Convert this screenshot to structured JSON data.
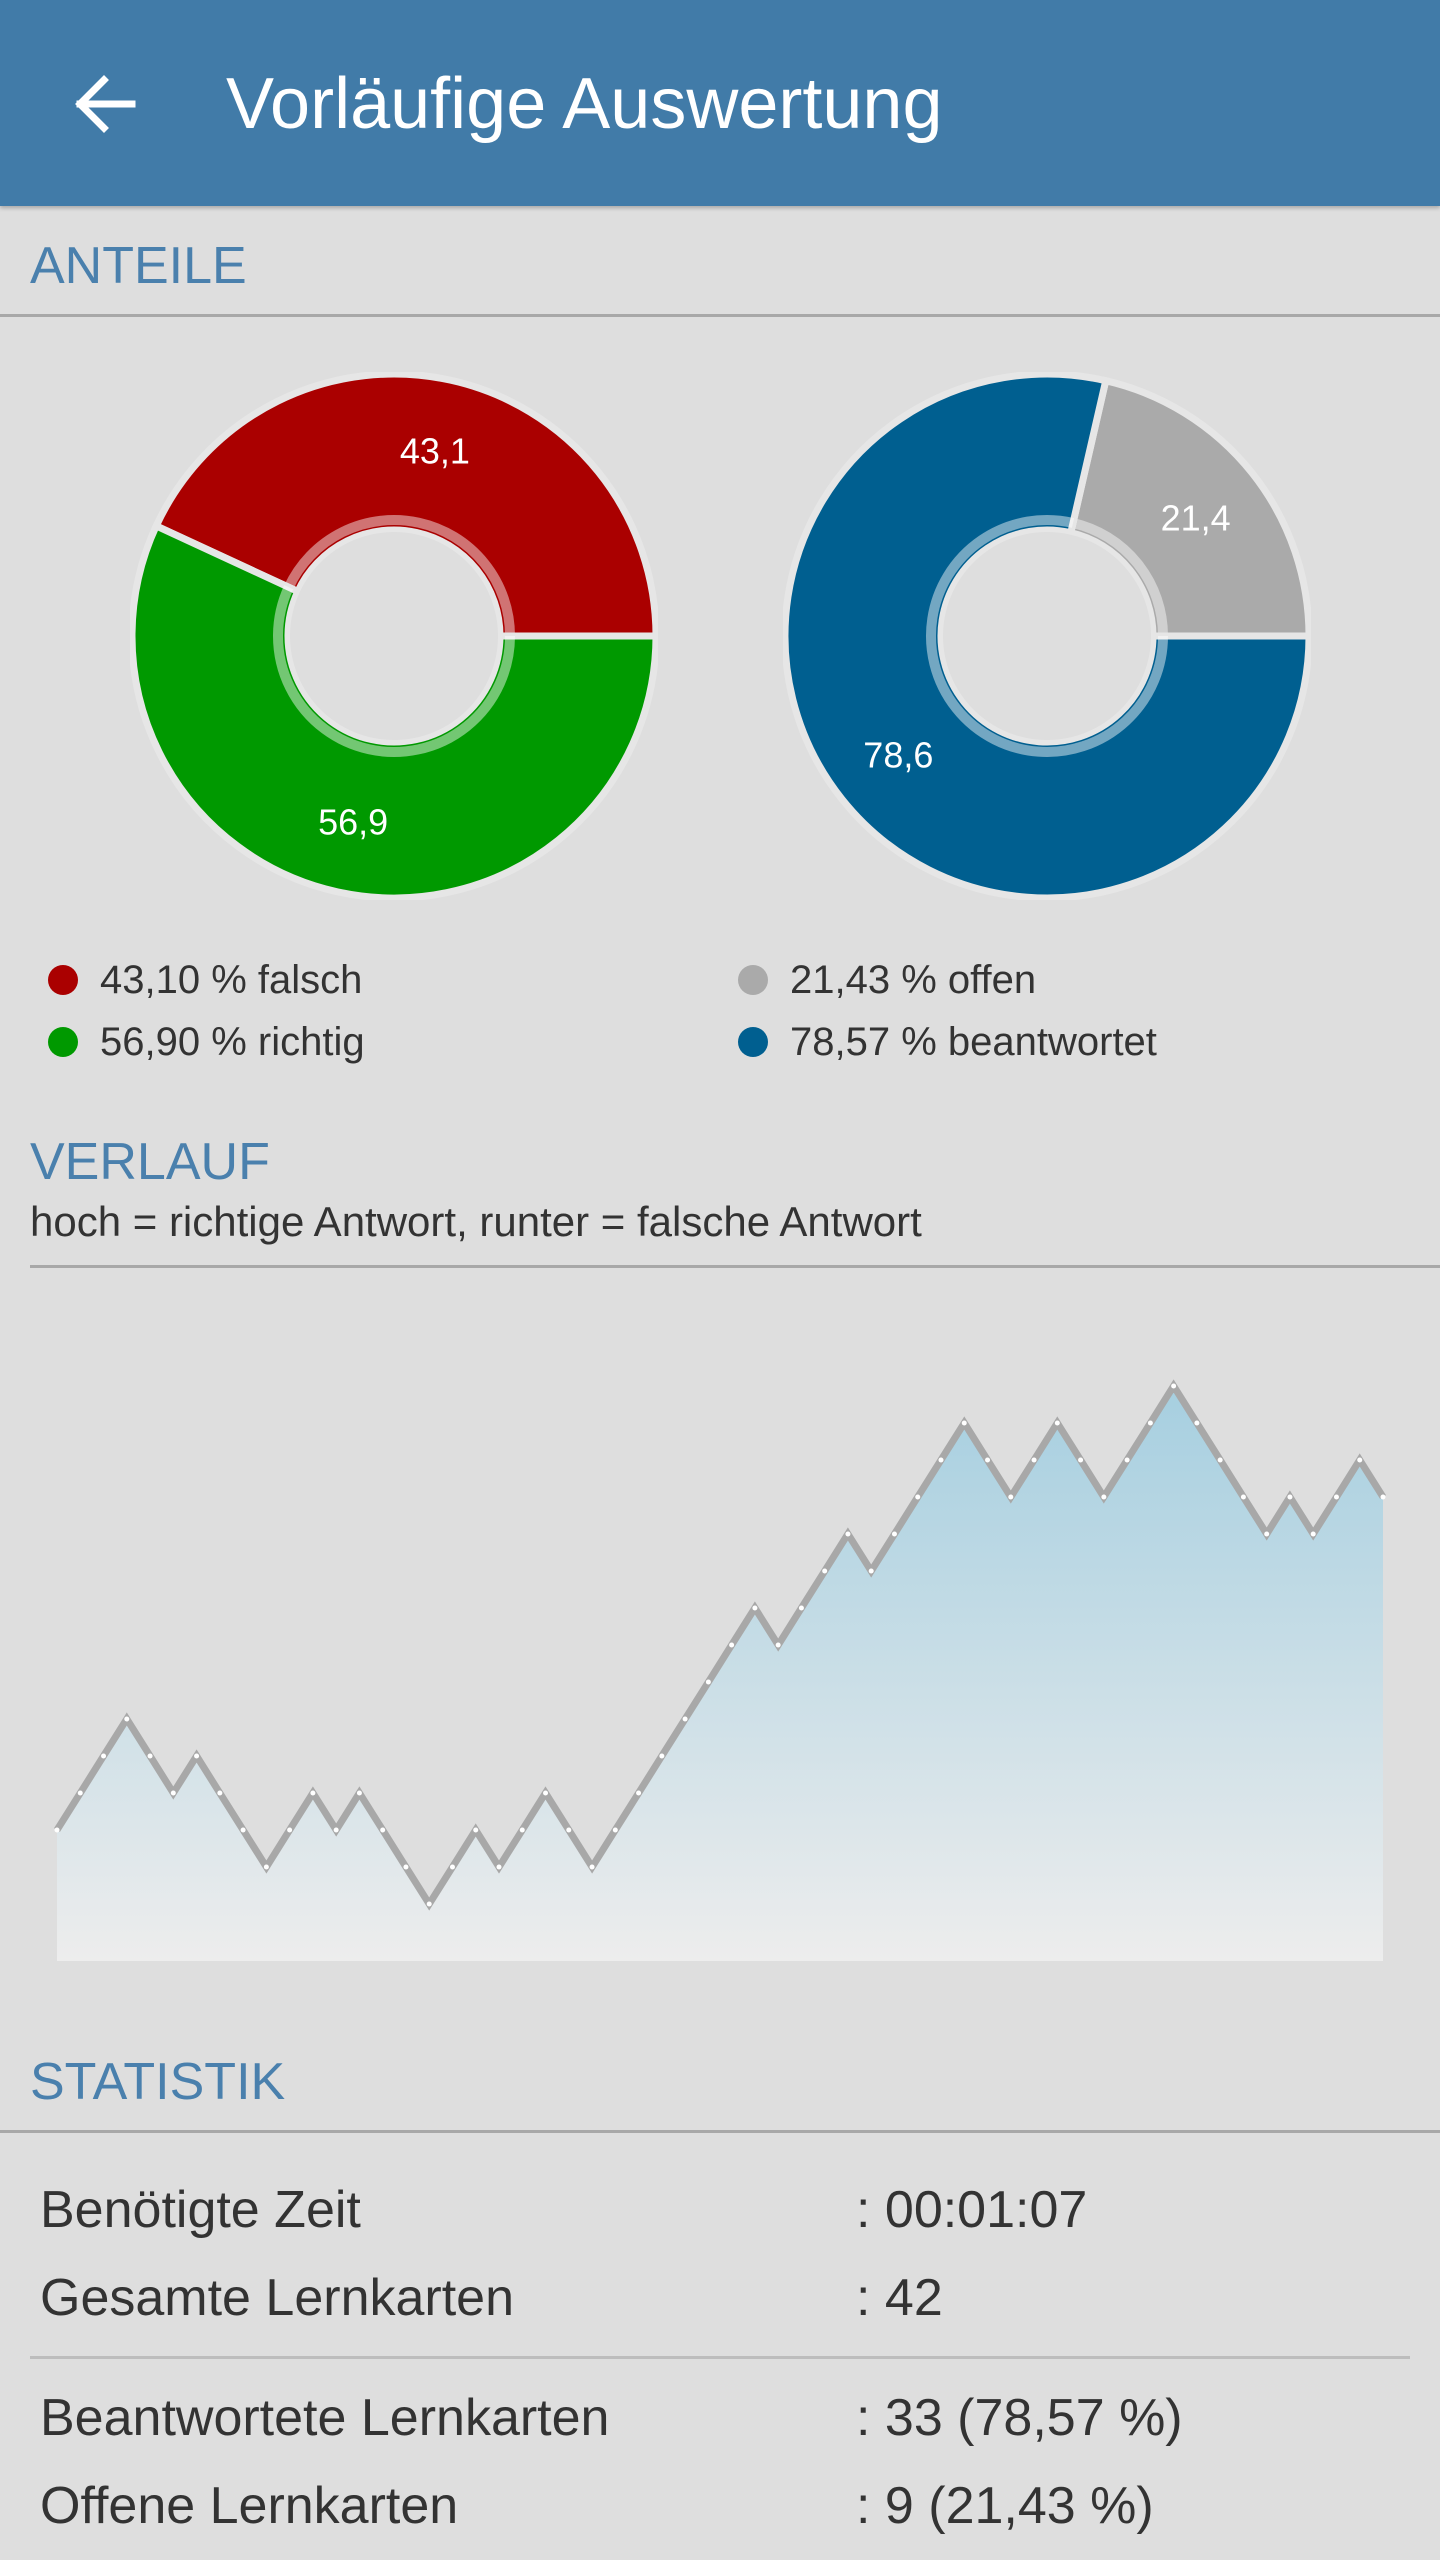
{
  "header": {
    "title": "Vorläufige Auswertung",
    "back_icon": "arrow-left-icon"
  },
  "sections": {
    "anteile": "ANTEILE",
    "verlauf": "VERLAUF",
    "verlauf_subtitle": "hoch = richtige Antwort, runter = falsche Antwort",
    "statistik": "STATISTIK"
  },
  "colors": {
    "header": "#417ba8",
    "section_title": "#4a80ad",
    "falsch": "#aa0000",
    "richtig": "#009900",
    "offen": "#aaaaaa",
    "beantwortet": "#005f90",
    "line": "#a8a8a8",
    "area_top": "#a6cfe0",
    "area_bottom": "#ededed"
  },
  "chart_data": [
    {
      "type": "pie",
      "labels": [
        "43,1",
        "56,9"
      ],
      "values": [
        43.1,
        56.9
      ],
      "colors": [
        "#aa0000",
        "#009900"
      ],
      "legend": [
        "43,10 % falsch",
        "56,90 % richtig"
      ]
    },
    {
      "type": "pie",
      "labels": [
        "21,4",
        "78,6"
      ],
      "values": [
        21.4,
        78.6
      ],
      "colors": [
        "#aaaaaa",
        "#005f90"
      ],
      "legend": [
        "21,43 % offen",
        "78,57 % beantwortet"
      ]
    },
    {
      "type": "area",
      "values": [
        0,
        1,
        2,
        3,
        2,
        1,
        2,
        1,
        0,
        -1,
        0,
        1,
        0,
        1,
        0,
        -1,
        -2,
        -1,
        0,
        -1,
        0,
        1,
        0,
        -1,
        0,
        1,
        2,
        3,
        4,
        5,
        6,
        5,
        6,
        7,
        8,
        7,
        8,
        9,
        10,
        11,
        10,
        9,
        10,
        11,
        10,
        9,
        10,
        11,
        12,
        11,
        10,
        9,
        8,
        9,
        8,
        9,
        10,
        9
      ]
    }
  ],
  "statistik": {
    "rows": [
      {
        "label": "Benötigte Zeit",
        "value": ": 00:01:07"
      },
      {
        "label": "Gesamte Lernkarten",
        "value": ": 42"
      },
      {
        "label": "Beantwortete Lernkarten",
        "value": ": 33 (78,57 %)"
      },
      {
        "label": "Offene Lernkarten",
        "value": ": 9 (21,43 %)"
      }
    ]
  }
}
